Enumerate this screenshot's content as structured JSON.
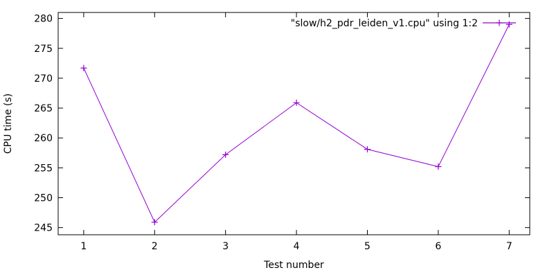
{
  "figure": {
    "background": "#ffffff",
    "text_color": "#000000",
    "border_color": "#000000"
  },
  "chart_data": {
    "type": "line",
    "title": "",
    "legend": "\"slow/h2_pdr_leiden_v1.cpu\" using 1:2",
    "legend_position": "top-right-inside",
    "xlabel": "Test number",
    "ylabel": "CPU time (s)",
    "x": [
      1,
      2,
      3,
      4,
      5,
      6,
      7
    ],
    "series": [
      {
        "name": "\"slow/h2_pdr_leiden_v1.cpu\" using 1:2",
        "color": "#9400d3",
        "marker": "plus",
        "values": [
          271.7,
          245.9,
          257.2,
          265.9,
          258.1,
          255.2,
          279.0
        ]
      }
    ],
    "xticks": [
      1,
      2,
      3,
      4,
      5,
      6,
      7
    ],
    "yticks": [
      245,
      250,
      255,
      260,
      265,
      270,
      275,
      280
    ],
    "xlim": [
      0.64,
      7.29
    ],
    "ylim": [
      243.8,
      281.0
    ],
    "grid": false,
    "tick_style": "inward-mirrored"
  }
}
